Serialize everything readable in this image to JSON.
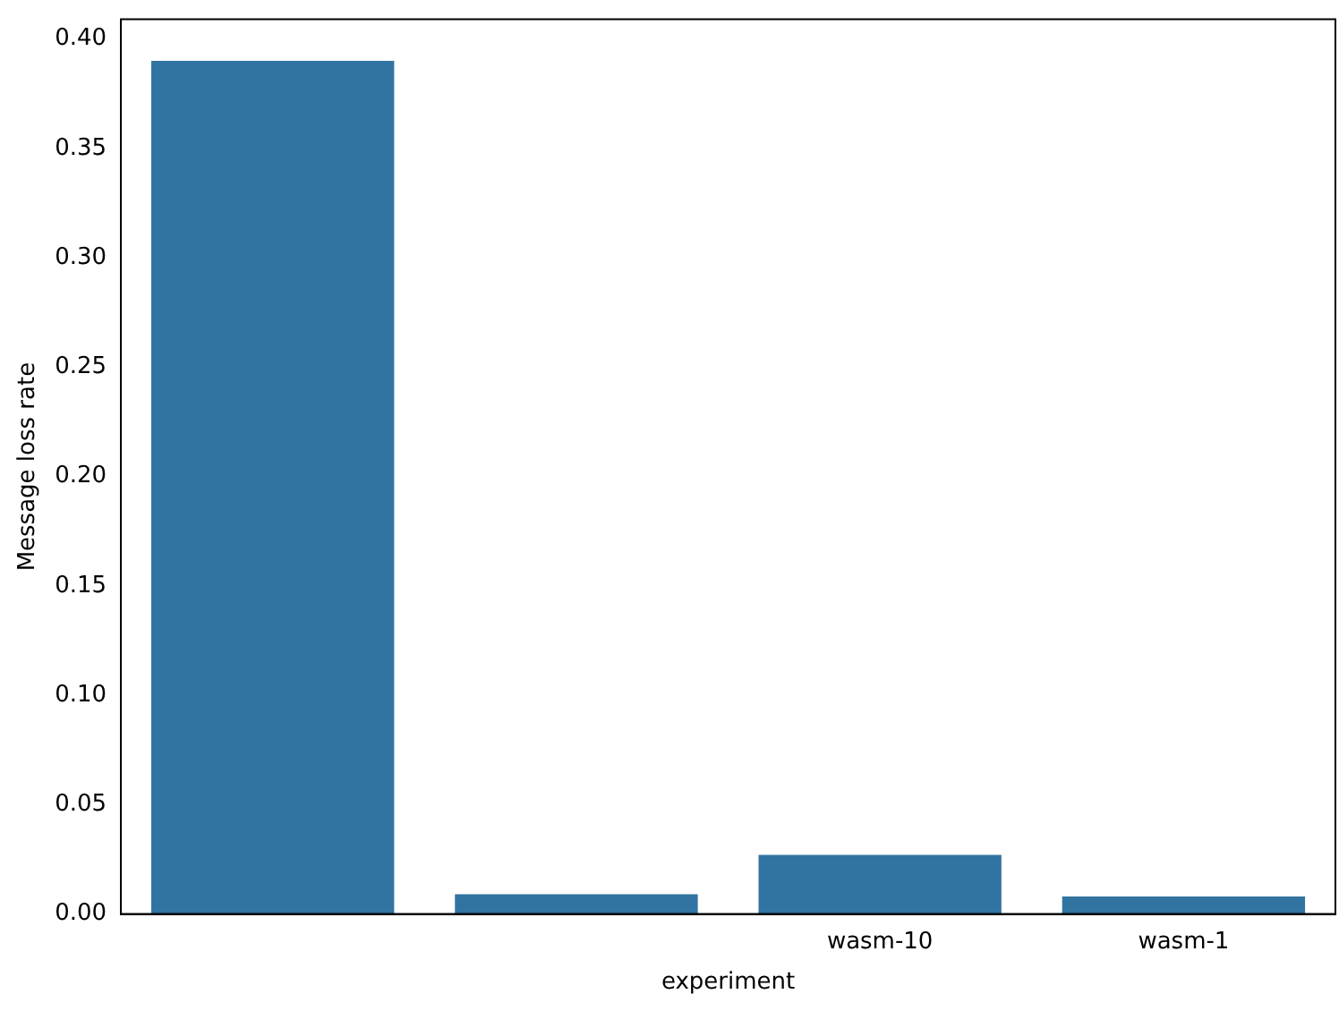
{
  "chart_data": {
    "type": "bar",
    "xlabel": "experiment",
    "ylabel": "Message loss rate",
    "categories": [
      null,
      null,
      "wasm-10",
      "wasm-1"
    ],
    "values": [
      0.39,
      0.009,
      0.027,
      0.008
    ],
    "color": "#3274a1",
    "ylim": [
      0,
      0.409
    ],
    "yticks": [
      {
        "value": 0,
        "label": "0.00"
      },
      0.05,
      {
        "value": 0.1,
        "label": "0.10"
      },
      0.15,
      {
        "value": 0.2,
        "label": "0.20"
      },
      0.25,
      {
        "value": 0.3,
        "label": "0.30"
      },
      0.35,
      {
        "value": 0.4,
        "label": "0.40"
      }
    ],
    "grid": false,
    "legend": false
  }
}
